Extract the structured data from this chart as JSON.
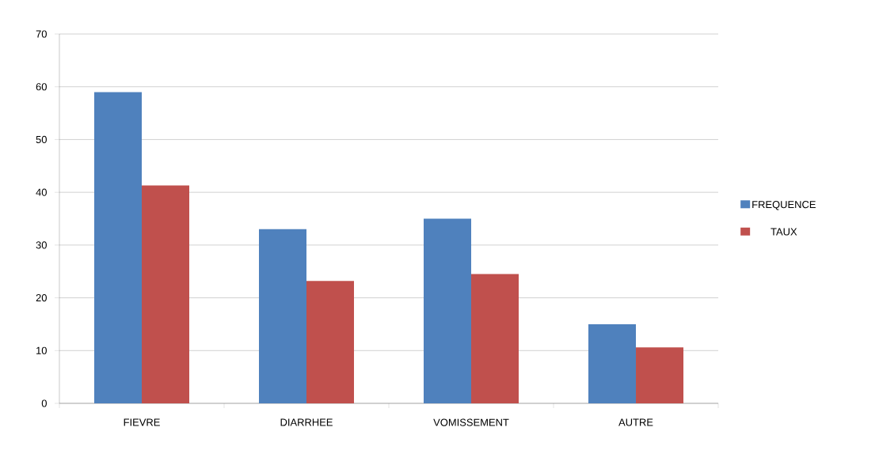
{
  "chart_data": {
    "type": "bar",
    "categories": [
      "FIEVRE",
      "DIARRHEE",
      "VOMISSEMENT",
      "AUTRE"
    ],
    "series": [
      {
        "name": "FREQUENCE",
        "color": "#4f81bd",
        "values": [
          59,
          33,
          35,
          15
        ]
      },
      {
        "name": "TAUX",
        "color": "#c0504d",
        "values": [
          41.3,
          23.2,
          24.5,
          10.6
        ]
      }
    ],
    "ylim": [
      0,
      70
    ],
    "yticks": [
      0,
      10,
      20,
      30,
      40,
      50,
      60,
      70
    ],
    "grid": "y",
    "legend": "right"
  }
}
